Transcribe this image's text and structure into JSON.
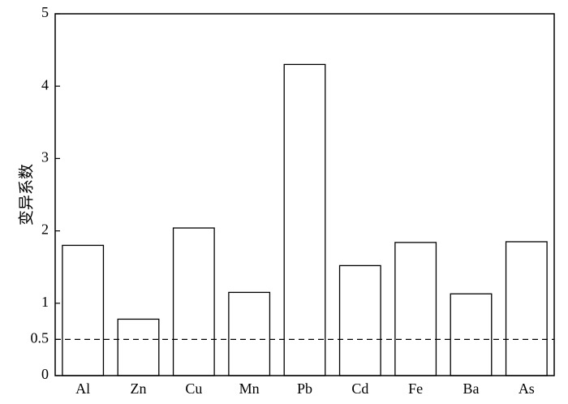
{
  "chart_data": {
    "type": "bar",
    "y_label": "变异系数",
    "categories": [
      "Al",
      "Zn",
      "Cu",
      "Mn",
      "Pb",
      "Cd",
      "Fe",
      "Ba",
      "As"
    ],
    "values": [
      1.8,
      0.78,
      2.04,
      1.15,
      4.3,
      1.52,
      1.84,
      1.13,
      1.85
    ],
    "color": "#ffffff",
    "edge_color": "#000000",
    "ylim": [
      0,
      5
    ],
    "yticks": [
      0,
      0.5,
      1,
      2,
      3,
      4,
      5
    ],
    "grid": false,
    "reference_line": {
      "value": 0.5,
      "style": "dashed"
    }
  }
}
